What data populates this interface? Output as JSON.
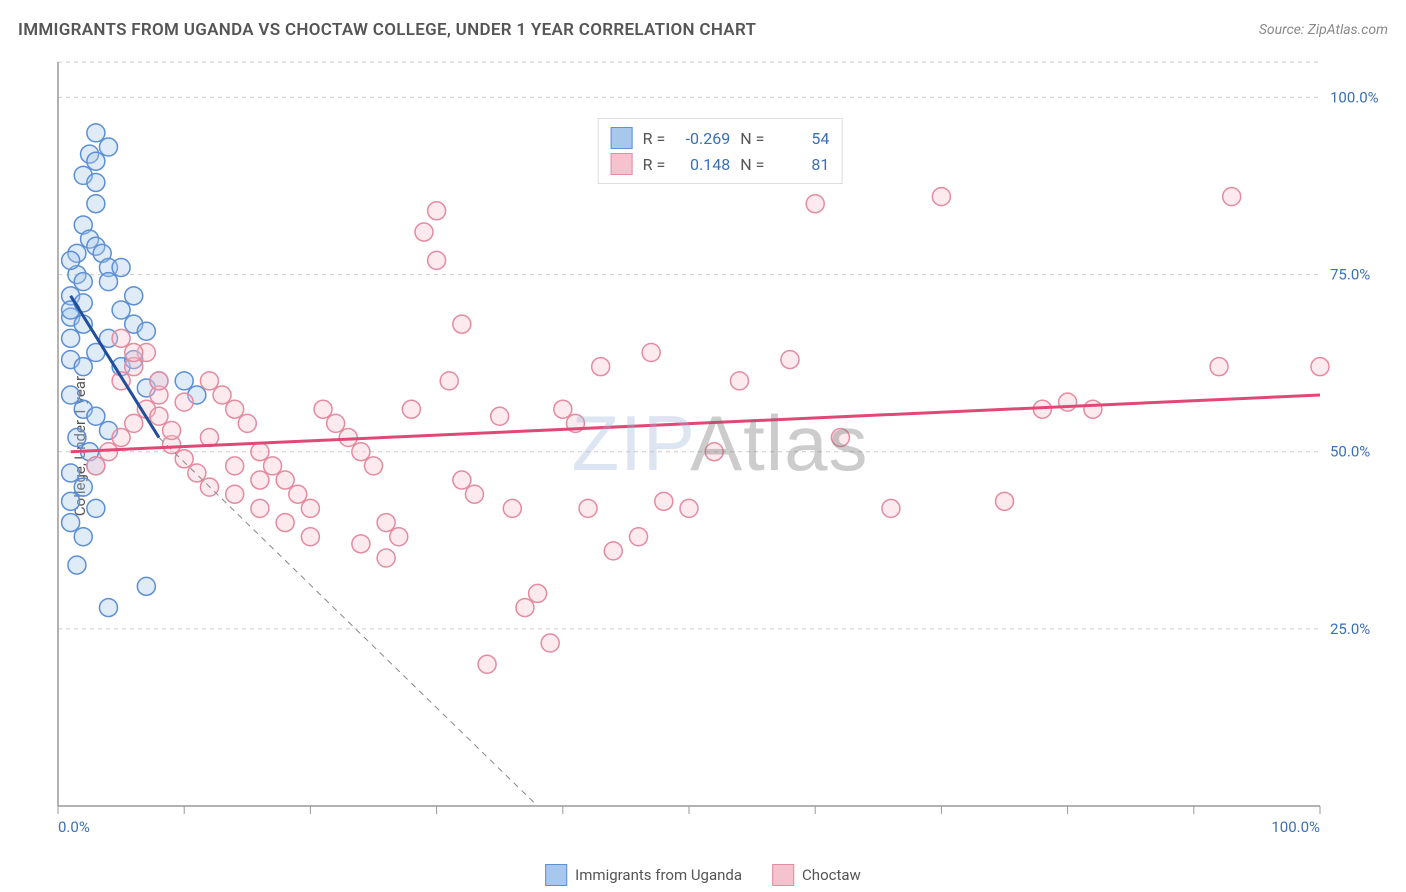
{
  "title": "IMMIGRANTS FROM UGANDA VS CHOCTAW COLLEGE, UNDER 1 YEAR CORRELATION CHART",
  "source": "Source: ZipAtlas.com",
  "y_axis_label": "College, Under 1 year",
  "watermark_part1": "ZIP",
  "watermark_part2": "Atlas",
  "chart": {
    "type": "scatter",
    "background_color": "#ffffff",
    "grid_color": "#cccccc",
    "axis_color": "#999999",
    "label_color": "#3b6fb6",
    "xlim": [
      0,
      100
    ],
    "ylim": [
      0,
      105
    ],
    "x_ticks": [
      0,
      10,
      20,
      30,
      40,
      50,
      60,
      70,
      80,
      90,
      100
    ],
    "x_tick_labels": {
      "0": "0.0%",
      "100": "100.0%"
    },
    "y_ticks": [
      25,
      50,
      75,
      100
    ],
    "y_tick_labels": {
      "25": "25.0%",
      "50": "50.0%",
      "75": "75.0%",
      "100": "100.0%"
    },
    "marker_radius": 9,
    "marker_opacity": 0.35,
    "trend_line_width": 3
  },
  "series": [
    {
      "name": "Immigrants from Uganda",
      "fill_color": "#a7c7ec",
      "stroke_color": "#5b8fd6",
      "trend_color": "#1f4e9c",
      "R_label": "R =",
      "R": "-0.269",
      "N_label": "N =",
      "N": "54",
      "trend": {
        "x1": 1,
        "y1": 72,
        "x2": 8,
        "y2": 52
      },
      "trend_extension": {
        "x1": 8,
        "y1": 52,
        "x2": 38,
        "y2": 0
      },
      "points": [
        [
          1,
          69
        ],
        [
          1,
          72
        ],
        [
          1.5,
          75
        ],
        [
          1,
          70
        ],
        [
          2,
          68
        ],
        [
          2,
          71
        ],
        [
          2,
          74
        ],
        [
          1,
          66
        ],
        [
          2.5,
          92
        ],
        [
          3,
          91
        ],
        [
          2,
          89
        ],
        [
          3,
          88
        ],
        [
          3,
          85
        ],
        [
          2,
          82
        ],
        [
          2.5,
          80
        ],
        [
          3,
          79
        ],
        [
          1.5,
          78
        ],
        [
          3.5,
          78
        ],
        [
          4,
          76
        ],
        [
          1,
          77
        ],
        [
          3,
          95
        ],
        [
          4,
          93
        ],
        [
          1,
          63
        ],
        [
          2,
          62
        ],
        [
          3,
          64
        ],
        [
          4,
          66
        ],
        [
          5,
          62
        ],
        [
          6,
          63
        ],
        [
          7,
          59
        ],
        [
          8,
          60
        ],
        [
          1,
          58
        ],
        [
          2,
          56
        ],
        [
          3,
          55
        ],
        [
          4,
          53
        ],
        [
          1.5,
          52
        ],
        [
          2.5,
          50
        ],
        [
          3,
          48
        ],
        [
          1,
          47
        ],
        [
          2,
          45
        ],
        [
          1,
          43
        ],
        [
          1,
          40
        ],
        [
          3,
          42
        ],
        [
          2,
          38
        ],
        [
          1.5,
          34
        ],
        [
          7,
          31
        ],
        [
          4,
          28
        ],
        [
          5,
          70
        ],
        [
          6,
          72
        ],
        [
          4,
          74
        ],
        [
          5,
          76
        ],
        [
          6,
          68
        ],
        [
          7,
          67
        ],
        [
          10,
          60
        ],
        [
          11,
          58
        ]
      ]
    },
    {
      "name": "Choctaw",
      "fill_color": "#f5c3ce",
      "stroke_color": "#e58ba0",
      "trend_color": "#e04876",
      "R_label": "R =",
      "R": "0.148",
      "N_label": "N =",
      "N": "81",
      "trend": {
        "x1": 1,
        "y1": 50,
        "x2": 100,
        "y2": 58
      },
      "points": [
        [
          3,
          48
        ],
        [
          4,
          50
        ],
        [
          5,
          52
        ],
        [
          6,
          54
        ],
        [
          7,
          56
        ],
        [
          8,
          58
        ],
        [
          9,
          51
        ],
        [
          10,
          49
        ],
        [
          11,
          47
        ],
        [
          12,
          45
        ],
        [
          13,
          58
        ],
        [
          14,
          56
        ],
        [
          15,
          54
        ],
        [
          16,
          50
        ],
        [
          17,
          48
        ],
        [
          18,
          46
        ],
        [
          19,
          44
        ],
        [
          20,
          42
        ],
        [
          21,
          56
        ],
        [
          22,
          54
        ],
        [
          23,
          52
        ],
        [
          24,
          50
        ],
        [
          25,
          48
        ],
        [
          26,
          40
        ],
        [
          27,
          38
        ],
        [
          28,
          56
        ],
        [
          29,
          81
        ],
        [
          30,
          77
        ],
        [
          30,
          84
        ],
        [
          31,
          60
        ],
        [
          32,
          46
        ],
        [
          32,
          68
        ],
        [
          33,
          44
        ],
        [
          34,
          20
        ],
        [
          35,
          55
        ],
        [
          36,
          42
        ],
        [
          37,
          28
        ],
        [
          38,
          30
        ],
        [
          39,
          23
        ],
        [
          40,
          56
        ],
        [
          41,
          54
        ],
        [
          42,
          42
        ],
        [
          43,
          62
        ],
        [
          44,
          36
        ],
        [
          46,
          38
        ],
        [
          47,
          64
        ],
        [
          48,
          43
        ],
        [
          50,
          42
        ],
        [
          52,
          50
        ],
        [
          54,
          60
        ],
        [
          58,
          63
        ],
        [
          60,
          85
        ],
        [
          62,
          52
        ],
        [
          66,
          42
        ],
        [
          70,
          86
        ],
        [
          75,
          43
        ],
        [
          78,
          56
        ],
        [
          80,
          57
        ],
        [
          82,
          56
        ],
        [
          92,
          62
        ],
        [
          93,
          86
        ],
        [
          100,
          62
        ],
        [
          5,
          60
        ],
        [
          6,
          62
        ],
        [
          7,
          64
        ],
        [
          8,
          55
        ],
        [
          9,
          53
        ],
        [
          10,
          57
        ],
        [
          12,
          52
        ],
        [
          14,
          44
        ],
        [
          16,
          42
        ],
        [
          18,
          40
        ],
        [
          20,
          38
        ],
        [
          24,
          37
        ],
        [
          26,
          35
        ],
        [
          5,
          66
        ],
        [
          6,
          64
        ],
        [
          8,
          60
        ],
        [
          12,
          60
        ],
        [
          14,
          48
        ],
        [
          16,
          46
        ]
      ]
    }
  ],
  "bottom_legend": [
    {
      "swatch_fill": "#a7c7ec",
      "swatch_stroke": "#5b8fd6",
      "label": "Immigrants from Uganda"
    },
    {
      "swatch_fill": "#f5c3ce",
      "swatch_stroke": "#e58ba0",
      "label": "Choctaw"
    }
  ]
}
